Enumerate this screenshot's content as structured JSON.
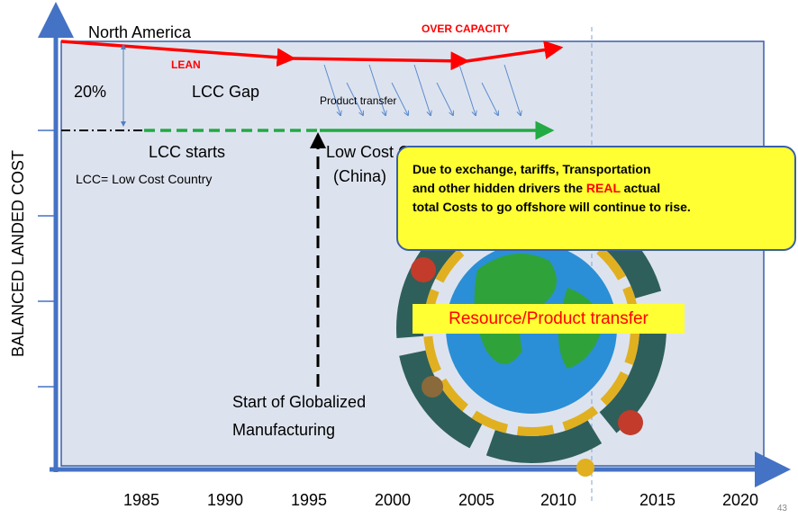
{
  "y_axis": {
    "label": "BALANCED LANDED COST"
  },
  "x_axis": {
    "labels": [
      1985,
      1990,
      1995,
      2000,
      2005,
      2010,
      2015,
      2020
    ]
  },
  "annotations": {
    "north_america": "North America",
    "lean": "LEAN",
    "over_capacity": "OVER CAPACITY",
    "gap_percent": "20%",
    "lcc_gap": "LCC Gap",
    "product_transfer": "Product transfer",
    "lcc_starts": "LCC starts",
    "lcc_definition": "LCC= Low Cost Country",
    "low_cost_country": "Low Cost Country",
    "china": "(China)",
    "start_line1": "Start of Globalized",
    "start_line2": "Manufacturing",
    "resource_transfer": "Resource/Product transfer"
  },
  "callout": {
    "line1": "Due to exchange, tariffs, Transportation",
    "line2_before": "and other hidden drivers the",
    "line2_highlight": "REAL",
    "line2_after": "actual",
    "line3": "total Costs to go offshore will continue to rise."
  },
  "page_number": "43"
}
